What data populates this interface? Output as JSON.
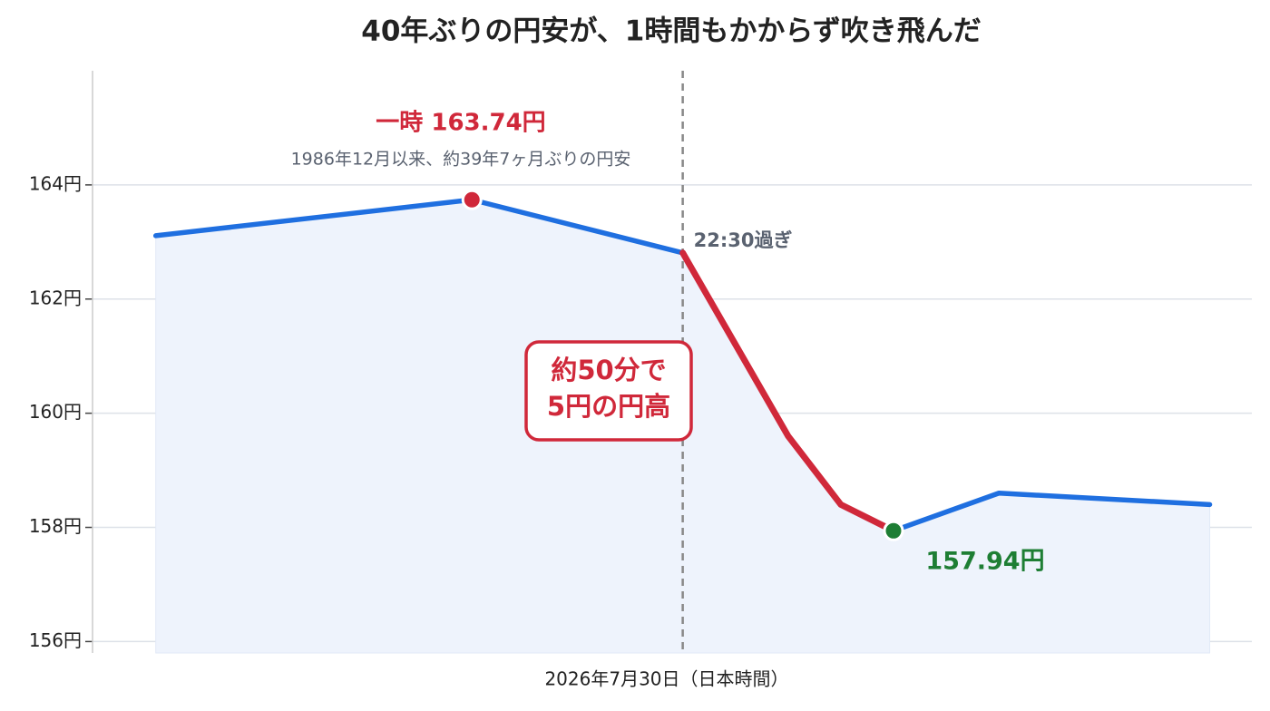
{
  "chart_data": {
    "type": "line",
    "title": "40年ぶりの円安が、1時間もかからず吹き飛んだ",
    "x_label": "2026年7月30日（日本時間）",
    "x": [
      0,
      60,
      100,
      120,
      130,
      140,
      160,
      200
    ],
    "xlim": [
      -12,
      208
    ],
    "series": [
      {
        "color": "#1f6fe0",
        "values": [
          163.11,
          163.74,
          162.81,
          159.6,
          158.4,
          157.94,
          158.6,
          158.4
        ]
      },
      {
        "color": "#d0283a",
        "values": [
          null,
          null,
          162.81,
          159.6,
          158.4,
          157.94,
          null,
          null
        ]
      }
    ],
    "ylim": [
      155.8,
      166
    ],
    "yticks": [
      {
        "value": 156,
        "label": "156円"
      },
      {
        "value": 158,
        "label": "158円"
      },
      {
        "value": 160,
        "label": "160円"
      },
      {
        "value": 162,
        "label": "162円"
      },
      {
        "value": 164,
        "label": "164円"
      }
    ],
    "grid": true,
    "vline": {
      "x": 100,
      "label": "22:30過ぎ"
    },
    "peak": {
      "index": 1,
      "color": "#d0283a",
      "label": "一時 163.74円",
      "note": "1986年12月以来、約39年7ヶ月ぶりの円安"
    },
    "low": {
      "index": 5,
      "color": "#1e7e34",
      "label": "157.94円"
    },
    "callout": {
      "lines": [
        "約50分で",
        "5円の円高"
      ],
      "color": "#d0283a"
    }
  }
}
